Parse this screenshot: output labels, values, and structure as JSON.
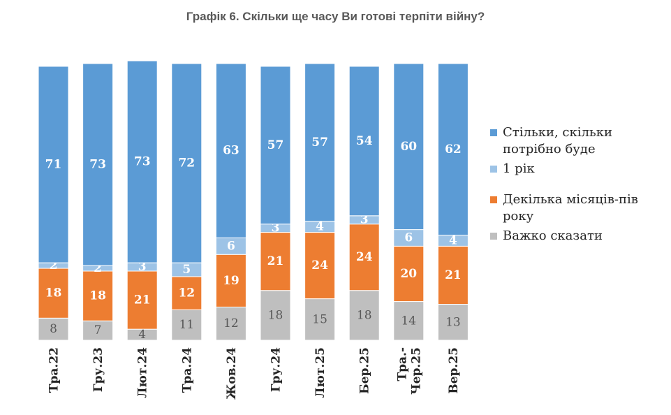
{
  "chart_data": {
    "type": "bar",
    "stacked": true,
    "title": "Графік 6. Скільки ще часу Ви готові терпіти війну?",
    "categories": [
      "Тра.22",
      "Гру.23",
      "Лют.24",
      "Тра.24",
      "Жов.24",
      "Гру.24",
      "Лют.25",
      "Бер.25",
      "Тра.-\nЧер.25",
      "Вер.25"
    ],
    "series": [
      {
        "name": "Важко сказати",
        "color": "#bfbfbf",
        "label_color": "#595959",
        "values": [
          8,
          7,
          4,
          11,
          12,
          18,
          15,
          18,
          14,
          13
        ]
      },
      {
        "name": "Декілька місяців-пів року",
        "color": "#ed7d31",
        "label_color": "#ffffff",
        "values": [
          18,
          18,
          21,
          12,
          19,
          21,
          24,
          24,
          20,
          21
        ]
      },
      {
        "name": "1 рік",
        "color": "#9dc3e6",
        "label_color": "#ffffff",
        "values": [
          2,
          2,
          3,
          5,
          6,
          3,
          4,
          3,
          6,
          4
        ]
      },
      {
        "name": "Стільки, скільки потрібно буде",
        "color": "#5b9bd5",
        "label_color": "#ffffff",
        "values": [
          71,
          73,
          73,
          72,
          63,
          57,
          57,
          54,
          60,
          62
        ]
      }
    ],
    "legend_order": [
      3,
      2,
      1,
      0
    ],
    "legend_position": "right",
    "ylim": [
      0,
      100
    ],
    "grid": false
  }
}
